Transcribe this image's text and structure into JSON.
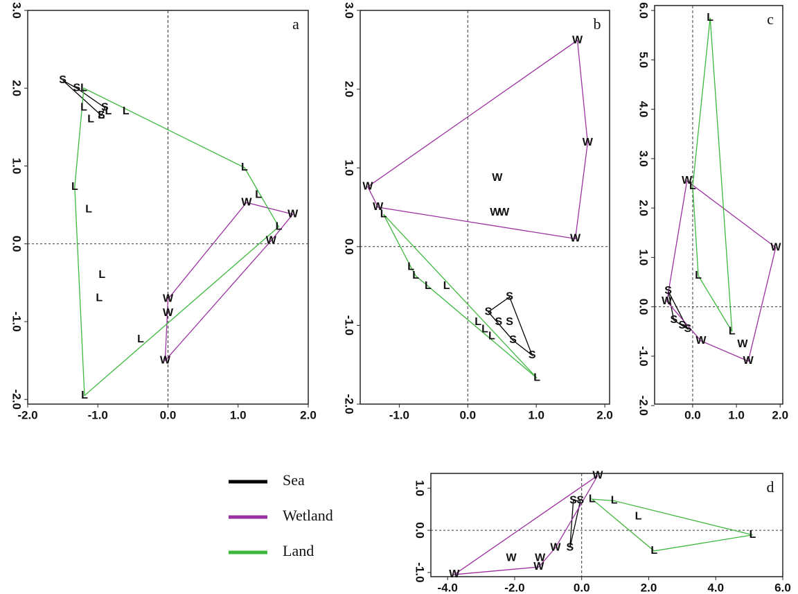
{
  "chart_data": {
    "type": "scatter",
    "legend": [
      {
        "name": "Sea",
        "color": "#000000"
      },
      {
        "name": "Wetland",
        "color": "#9b30a0"
      },
      {
        "name": "Land",
        "color": "#3cb83c"
      }
    ],
    "panels": [
      {
        "label": "a",
        "xlim": [
          -2.0,
          2.0
        ],
        "ylim": [
          -2.06,
          3.0
        ],
        "xticks": [
          {
            "value": -2,
            "label": "-2.0"
          },
          {
            "value": -1,
            "label": "-1.0"
          },
          {
            "value": 0,
            "label": "0.0"
          },
          {
            "value": 1,
            "label": "1.0"
          },
          {
            "value": 2,
            "label": "2.0"
          }
        ],
        "yticks": [
          {
            "value": -2,
            "label": "-2.0"
          },
          {
            "value": -1,
            "label": "-1.0"
          },
          {
            "value": 0,
            "label": "0.0"
          },
          {
            "value": 1,
            "label": "1.0"
          },
          {
            "value": 2,
            "label": "2.0"
          },
          {
            "value": 3,
            "label": "3.0"
          }
        ],
        "groups": [
          {
            "marker": "S",
            "color": "#000000",
            "x": [
              -1.5,
              -1.3,
              -0.9,
              -0.95
            ],
            "y": [
              2.1,
              2.0,
              1.75,
              1.65
            ]
          },
          {
            "marker": "W",
            "color": "#9b30a0",
            "x": [
              1.12,
              1.78,
              1.47,
              0.0,
              0.0,
              -0.04
            ],
            "y": [
              0.53,
              0.38,
              0.04,
              -0.71,
              -0.89,
              -1.5
            ]
          },
          {
            "marker": "L",
            "color": "#3cb83c",
            "x": [
              -1.2,
              -1.2,
              -1.1,
              -0.95,
              -0.85,
              -0.6,
              1.09,
              1.29,
              1.58,
              -1.33,
              -1.13,
              -0.94,
              -0.98,
              -0.39,
              -1.19
            ],
            "y": [
              2.0,
              1.75,
              1.6,
              1.65,
              1.7,
              1.7,
              0.98,
              0.63,
              0.22,
              0.73,
              0.44,
              -0.4,
              -0.7,
              -1.23,
              -1.95
            ]
          }
        ]
      },
      {
        "label": "b",
        "xlim": [
          -1.57,
          2.07
        ],
        "ylim": [
          -2.0,
          3.0
        ],
        "xticks": [
          {
            "value": -1,
            "label": "-1.0"
          },
          {
            "value": 0,
            "label": "0.0"
          },
          {
            "value": 1,
            "label": "1.0"
          },
          {
            "value": 2,
            "label": "2.0"
          }
        ],
        "yticks": [
          {
            "value": -2,
            "label": "-2.0"
          },
          {
            "value": -1,
            "label": "-1.0"
          },
          {
            "value": 0,
            "label": "0.0"
          },
          {
            "value": 1,
            "label": "1.0"
          },
          {
            "value": 2,
            "label": "2.0"
          },
          {
            "value": 3,
            "label": "3.0"
          }
        ],
        "groups": [
          {
            "marker": "S",
            "color": "#000000",
            "x": [
              0.61,
              0.3,
              0.45,
              0.61,
              0.66,
              0.94
            ],
            "y": [
              -0.64,
              -0.83,
              -0.96,
              -0.96,
              -1.19,
              -1.38
            ]
          },
          {
            "marker": "W",
            "color": "#9b30a0",
            "x": [
              1.6,
              1.75,
              1.57,
              -1.46,
              -1.31,
              0.43,
              0.53,
              0.4
            ],
            "y": [
              2.62,
              1.32,
              0.1,
              0.76,
              0.5,
              0.87,
              0.43,
              0.43
            ]
          },
          {
            "marker": "L",
            "color": "#3cb83c",
            "x": [
              -1.23,
              -0.83,
              -0.76,
              -0.58,
              -0.31,
              0.15,
              0.25,
              0.35,
              1.01
            ],
            "y": [
              0.41,
              -0.26,
              -0.37,
              -0.5,
              -0.5,
              -0.96,
              -1.05,
              -1.14,
              -1.67
            ]
          }
        ]
      },
      {
        "label": "c",
        "xlim": [
          -0.87,
          2.06
        ],
        "ylim": [
          -1.97,
          6.1
        ],
        "xticks": [
          {
            "value": 0,
            "label": "0.0"
          },
          {
            "value": 1,
            "label": "1.0"
          },
          {
            "value": 2,
            "label": "2.0"
          }
        ],
        "yticks": [
          {
            "value": -2,
            "label": "-2.0"
          },
          {
            "value": -1,
            "label": "-1.0"
          },
          {
            "value": 0,
            "label": "0.0"
          },
          {
            "value": 1,
            "label": "1.0"
          },
          {
            "value": 2,
            "label": "2.0"
          },
          {
            "value": 3,
            "label": "3.0"
          },
          {
            "value": 4,
            "label": "4.0"
          },
          {
            "value": 5,
            "label": "5.0"
          },
          {
            "value": 6,
            "label": "6.0"
          }
        ],
        "groups": [
          {
            "marker": "S",
            "color": "#000000",
            "x": [
              -0.56,
              -0.43,
              -0.24,
              -0.11
            ],
            "y": [
              0.32,
              -0.27,
              -0.38,
              -0.45
            ]
          },
          {
            "marker": "W",
            "color": "#9b30a0",
            "x": [
              -0.13,
              1.9,
              0.19,
              1.14,
              1.27,
              -0.59
            ],
            "y": [
              2.55,
              1.2,
              -0.69,
              -0.76,
              -1.1,
              0.11
            ]
          },
          {
            "marker": "L",
            "color": "#3cb83c",
            "x": [
              0.4,
              0.0,
              0.13,
              0.9
            ],
            "y": [
              5.85,
              2.44,
              0.63,
              -0.5
            ]
          }
        ]
      },
      {
        "label": "d",
        "xlim": [
          -4.5,
          6.0
        ],
        "ylim": [
          -1.1,
          1.35
        ],
        "xticks": [
          {
            "value": -4,
            "label": "-4.0"
          },
          {
            "value": -2,
            "label": "-2.0"
          },
          {
            "value": 0,
            "label": "0.0"
          },
          {
            "value": 2,
            "label": "2.0"
          },
          {
            "value": 4,
            "label": "4.0"
          },
          {
            "value": 6,
            "label": "6.0"
          }
        ],
        "yticks": [
          {
            "value": -1,
            "label": "-1.0"
          },
          {
            "value": 0,
            "label": "0.0"
          },
          {
            "value": 1,
            "label": "1.0"
          }
        ],
        "groups": [
          {
            "marker": "S",
            "color": "#000000",
            "x": [
              -0.25,
              -0.04,
              -0.35
            ],
            "y": [
              0.7,
              0.7,
              -0.41
            ]
          },
          {
            "marker": "W",
            "color": "#9b30a0",
            "x": [
              0.48,
              -3.8,
              -2.1,
              -1.24,
              -1.28,
              -0.78
            ],
            "y": [
              1.3,
              -1.05,
              -0.66,
              -0.66,
              -0.87,
              -0.41
            ]
          },
          {
            "marker": "L",
            "color": "#3cb83c",
            "x": [
              0.31,
              0.97,
              1.69,
              2.16,
              5.1
            ],
            "y": [
              0.74,
              0.7,
              0.33,
              -0.49,
              -0.11
            ]
          }
        ]
      }
    ]
  }
}
